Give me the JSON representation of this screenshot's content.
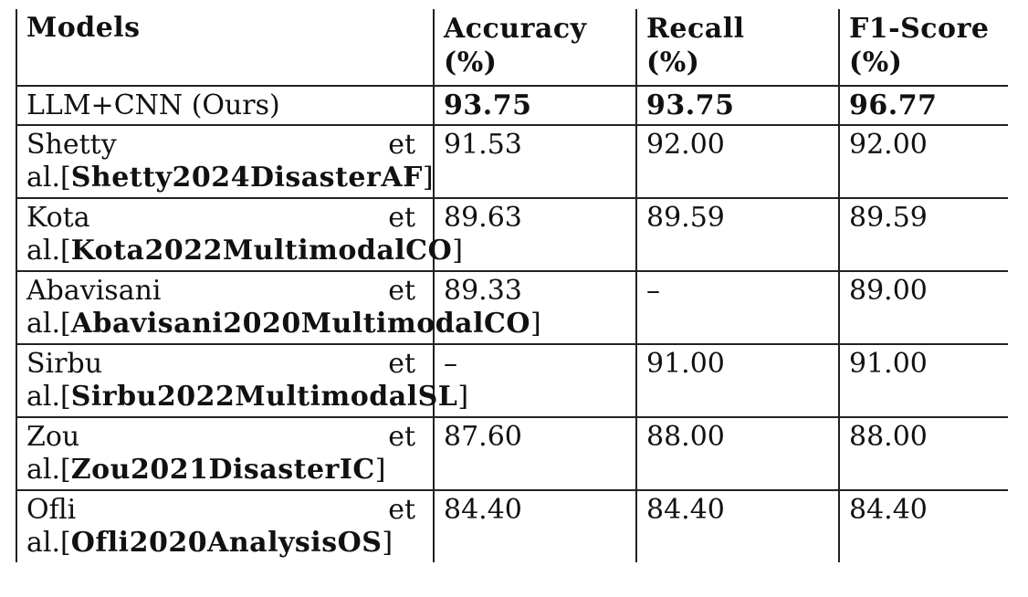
{
  "table": {
    "headers": {
      "models": "Models",
      "accuracy_line1": "Accuracy",
      "accuracy_line2": "(%)",
      "recall_line1": "Recall",
      "recall_line2": "(%)",
      "f1_line1": "F1-Score",
      "f1_line2": "(%)"
    },
    "ours": {
      "model": "LLM+CNN (Ours)",
      "accuracy": "93.75",
      "recall": "93.75",
      "f1": "96.77"
    },
    "rows": [
      {
        "author": "Shetty",
        "etal": "et",
        "prefix": "al.[",
        "citation": "Shetty2024DisasterAF",
        "suffix": "]",
        "accuracy": "91.53",
        "recall": "92.00",
        "f1": "92.00"
      },
      {
        "author": "Kota",
        "etal": "et",
        "prefix": "al.[",
        "citation": "Kota2022MultimodalCO",
        "suffix": "]",
        "accuracy": "89.63",
        "recall": "89.59",
        "f1": "89.59"
      },
      {
        "author": "Abavisani",
        "etal": "et",
        "prefix": "al.[",
        "citation": "Abavisani2020MultimodalCO",
        "suffix": "]",
        "accuracy": "89.33",
        "recall": "–",
        "f1": "89.00"
      },
      {
        "author": "Sirbu",
        "etal": "et",
        "prefix": "al.[",
        "citation": "Sirbu2022MultimodalSL",
        "suffix": "]",
        "accuracy": "–",
        "recall": "91.00",
        "f1": "91.00"
      },
      {
        "author": "Zou",
        "etal": "et",
        "prefix": "al.[",
        "citation": "Zou2021DisasterIC",
        "suffix": "]",
        "accuracy": "87.60",
        "recall": "88.00",
        "f1": "88.00"
      },
      {
        "author": "Ofli",
        "etal": "et",
        "prefix": "al.[",
        "citation": "Ofli2020AnalysisOS",
        "suffix": "]",
        "accuracy": "84.40",
        "recall": "84.40",
        "f1": "84.40"
      }
    ]
  }
}
